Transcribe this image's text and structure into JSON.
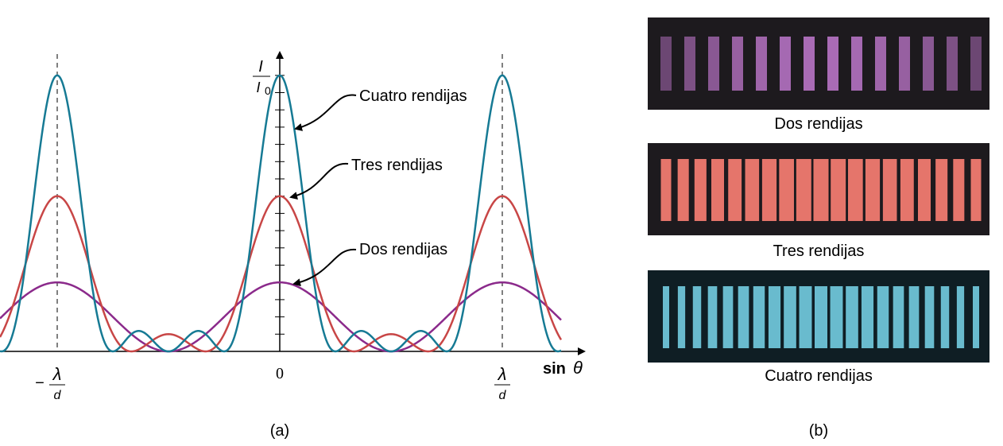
{
  "panel_a": {
    "y_label": {
      "numerator": "I",
      "denominator": "I",
      "denominator_sub": "0"
    },
    "curve_labels": [
      "Cuatro rendijas",
      "Tres rendijas",
      "Dos rendijas"
    ],
    "x_labels": [
      {
        "sign": "−",
        "numerator": "λ",
        "denominator": "d"
      },
      {
        "text": "0"
      },
      {
        "numerator": "λ",
        "denominator": "d"
      }
    ],
    "x_axis_label": {
      "text": "sin",
      "symbol": "θ"
    },
    "caption": "(a)"
  },
  "panel_b": {
    "photos": [
      {
        "caption": "Dos rendijas"
      },
      {
        "caption": "Tres rendijas"
      },
      {
        "caption": "Cuatro rendijas"
      }
    ],
    "caption": "(b)"
  }
}
